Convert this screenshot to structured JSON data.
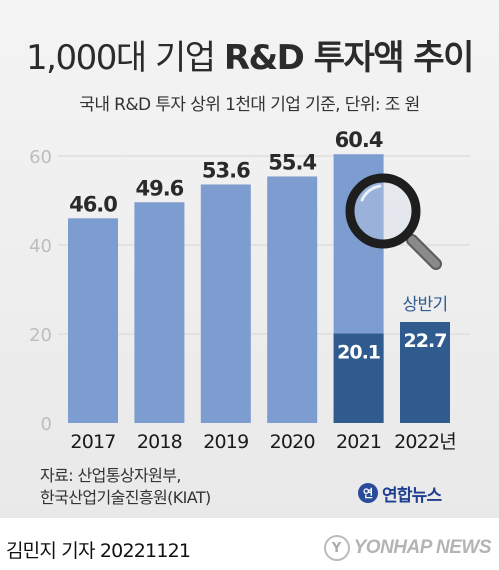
{
  "header": {
    "title_plain": "1,000대 기업",
    "title_bold": "R&D 투자액 추이",
    "subtitle": "국내 R&D 투자 상위 1천대 기업 기준, 단위: 조 원"
  },
  "chart_data": {
    "type": "bar",
    "title": "1,000대 기업 R&D 투자액 추이",
    "subtitle": "국내 R&D 투자 상위 1천대 기업 기준, 단위: 조 원",
    "categories": [
      "2017",
      "2018",
      "2019",
      "2020",
      "2021",
      "2022년"
    ],
    "series": [
      {
        "values": [
          46.0,
          49.6,
          53.6,
          55.4,
          60.4,
          null
        ],
        "labels": [
          "46.0",
          "49.6",
          "53.6",
          "55.4",
          "60.4",
          ""
        ]
      },
      {
        "name": "상반기",
        "values": [
          null,
          null,
          null,
          null,
          20.1,
          22.7
        ],
        "labels": [
          "",
          "",
          "",
          "",
          "20.1",
          "22.7"
        ]
      }
    ],
    "yticks": [
      0,
      20,
      40,
      60
    ],
    "ylim": [
      0,
      62
    ],
    "grid": true,
    "colors": {
      "annual": "#7d9ccf",
      "first_half": "#2f5b8e",
      "tick": "#bdbdbd",
      "grid": "#d6d6d6",
      "label": "#2a2a2a",
      "half_label": "#ffffff",
      "first_half_text": "#2f5b8e"
    },
    "annotation_icon": "magnifying-glass-icon"
  },
  "source": {
    "line1": "자료: 산업통상자원부,",
    "line2": "한국산업기술진흥원(KIAT)"
  },
  "agency": {
    "mark": "연",
    "name": "연합뉴스"
  },
  "footer": {
    "byline": "김민지 기자  20221121",
    "wire_mark": "Y",
    "wire_name": "YONHAP NEWS"
  }
}
